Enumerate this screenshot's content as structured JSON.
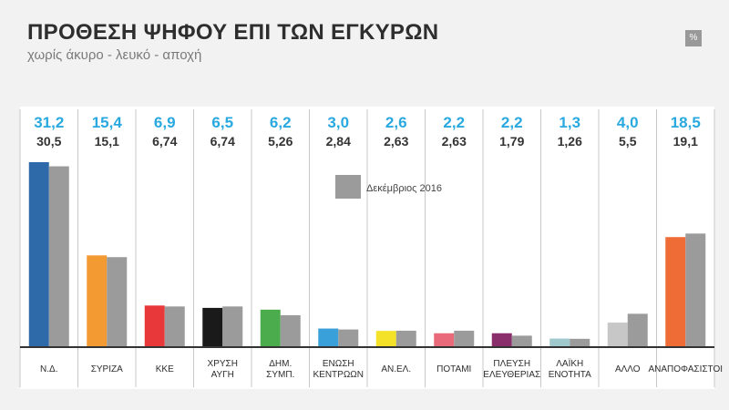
{
  "header": {
    "title": "ΠΡΟΘΕΣΗ ΨΗΦΟΥ ΕΠΙ ΤΩΝ ΕΓΚΥΡΩΝ",
    "subtitle": "χωρίς άκυρο - λευκό - αποχή",
    "unit": "%"
  },
  "chart_data": {
    "type": "bar",
    "title": "ΠΡΟΘΕΣΗ ΨΗΦΟΥ ΕΠΙ ΤΩΝ ΕΓΚΥΡΩΝ",
    "subtitle": "χωρίς άκυρο - λευκό - αποχή",
    "categories": [
      [
        "Ν.Δ."
      ],
      [
        "ΣΥΡΙΖΑ"
      ],
      [
        "ΚΚΕ"
      ],
      [
        "ΧΡΥΣΗ",
        "ΑΥΓΗ"
      ],
      [
        "ΔΗΜ.",
        "ΣΥΜΠ."
      ],
      [
        "ΕΝΩΣΗ",
        "ΚΕΝΤΡΩΩΝ"
      ],
      [
        "ΑΝ.ΕΛ."
      ],
      [
        "ΠΟΤΑΜΙ"
      ],
      [
        "ΠΛΕΥΣΗ",
        "ΕΛΕΥΘΕΡΙΑΣ"
      ],
      [
        "ΛΑΪΚΗ",
        "ΕΝΟΤΗΤΑ"
      ],
      [
        "ΑΛΛΟ"
      ],
      [
        "ΑΝΑΠΟΦΑΣΙΣΤΟΙ"
      ]
    ],
    "series": [
      {
        "labels": [
          "31,2",
          "15,4",
          "6,9",
          "6,5",
          "6,2",
          "3,0",
          "2,6",
          "2,2",
          "2,2",
          "1,3",
          "4,0",
          "18,5"
        ],
        "values": [
          31.2,
          15.4,
          6.9,
          6.5,
          6.2,
          3.0,
          2.6,
          2.2,
          2.2,
          1.3,
          4.0,
          18.5
        ],
        "colors": [
          "#2e69aa",
          "#f49a33",
          "#e8383a",
          "#1a1a1a",
          "#4aac4c",
          "#3aa0d9",
          "#f3e227",
          "#e86a7b",
          "#8a2f6c",
          "#9fc9cc",
          "#c7c7c7",
          "#ef6c37"
        ]
      },
      {
        "name": "Δεκέμβριος 2016",
        "labels": [
          "30,5",
          "15,1",
          "6,74",
          "6,74",
          "5,26",
          "2,84",
          "2,63",
          "2,63",
          "1,79",
          "1,26",
          "5,5",
          "19,1"
        ],
        "values": [
          30.5,
          15.1,
          6.74,
          6.74,
          5.26,
          2.84,
          2.63,
          2.63,
          1.79,
          1.26,
          5.5,
          19.1
        ],
        "color": "#9b9b9b"
      }
    ],
    "ylim": [
      0,
      31.2
    ],
    "legend_position": "top-center",
    "grid": false
  }
}
